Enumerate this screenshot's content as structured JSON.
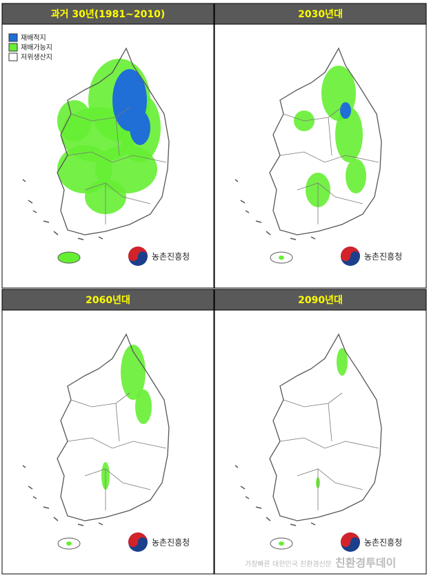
{
  "panels": [
    {
      "title": "과거 30년(1981~2010)"
    },
    {
      "title": "2030년대"
    },
    {
      "title": "2060년대"
    },
    {
      "title": "2090년대"
    }
  ],
  "legend": [
    {
      "label": "재배적지",
      "color": "#1f6fd6"
    },
    {
      "label": "재배가능지",
      "color": "#66ee33"
    },
    {
      "label": "저위생산지",
      "color": "#ffffff"
    }
  ],
  "logo": "농촌진흥청",
  "watermark": {
    "text": "가장빠른 대한민국 친환경신문",
    "brand": "친환경투데이"
  }
}
